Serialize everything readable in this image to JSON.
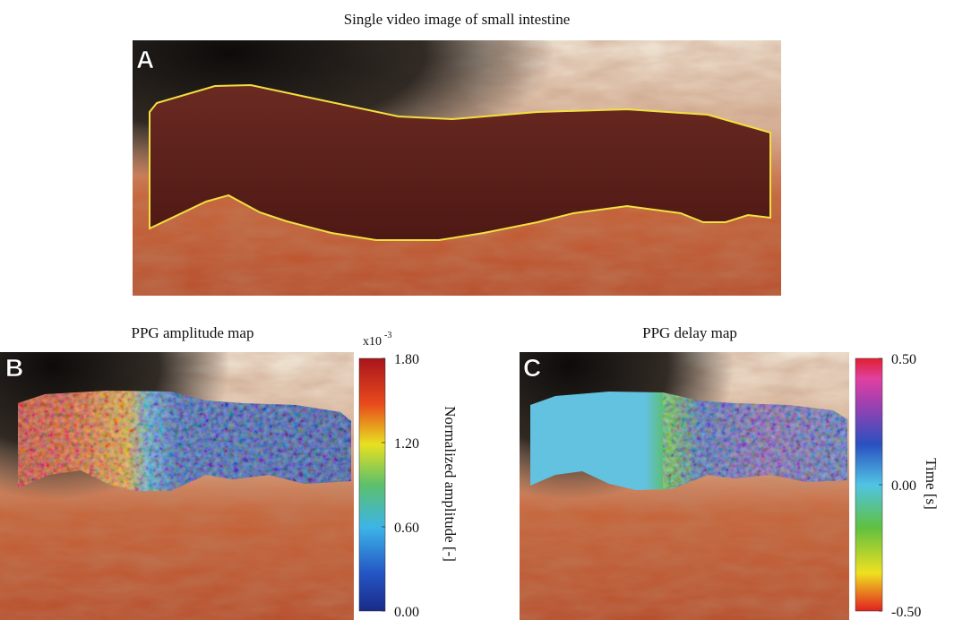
{
  "figure_title": "Single video image of small intestine",
  "panels": [
    {
      "label": "A"
    },
    {
      "label": "B",
      "title": "PPG amplitude map",
      "colorbar": {
        "multiplier_base": "x10",
        "multiplier_exponent": "-3",
        "label": "Normalized amplitude [-]",
        "lim": [
          0,
          1.8
        ],
        "ticks": [
          {
            "value": 0,
            "label": "0.00"
          },
          {
            "value": 0.6,
            "label": "0.60"
          },
          {
            "value": 1.2,
            "label": "1.20"
          },
          {
            "value": 1.8,
            "label": "1.80"
          }
        ]
      }
    },
    {
      "label": "C",
      "title": "PPG delay map",
      "colorbar": {
        "label": "Time [s]",
        "lim": [
          -0.5,
          0.5
        ],
        "ticks": [
          {
            "value": -0.5,
            "label": "-0.50"
          },
          {
            "value": 0,
            "label": "0.00"
          },
          {
            "value": 0.5,
            "label": "0.50"
          }
        ]
      }
    }
  ]
}
